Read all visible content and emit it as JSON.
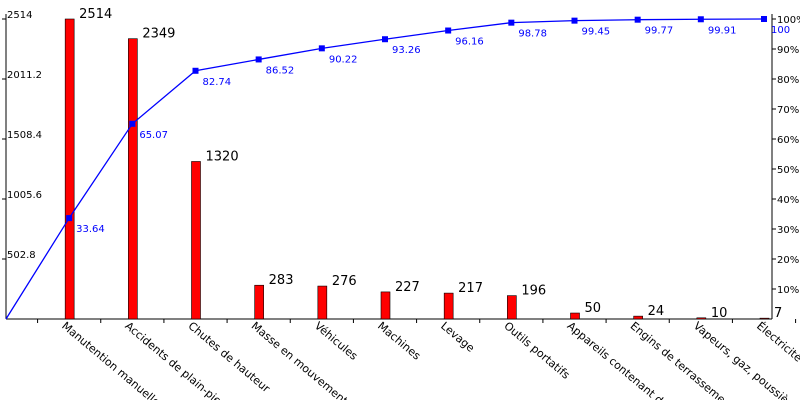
{
  "chart_data": {
    "type": "bar",
    "title": "",
    "categories": [
      "Manutention manuelle",
      "Accidents de plain-pied",
      "Chutes de hauteur",
      "Masse en mouvement",
      "Véhicules",
      "Machines",
      "Levage",
      "Outils portatifs",
      "Appareils contenant des",
      "Engins de terrassement",
      "Vapeurs, gaz, poussière",
      "Électricité"
    ],
    "series": [
      {
        "type": "bar",
        "values": [
          2514,
          2349,
          1320,
          283,
          276,
          227,
          217,
          196,
          50,
          24,
          10,
          7
        ],
        "labels": [
          "2514",
          "2349",
          "1320",
          "283",
          "276",
          "227",
          "217",
          "196",
          "50",
          "24",
          "10",
          "7"
        ],
        "color": "#ff0000"
      },
      {
        "type": "line",
        "axis": "right",
        "values": [
          33.64,
          65.07,
          82.74,
          86.52,
          90.22,
          93.26,
          96.16,
          98.78,
          99.45,
          99.77,
          99.91,
          100
        ],
        "labels": [
          "33.64",
          "65.07",
          "82.74",
          "86.52",
          "90.22",
          "93.26",
          "96.16",
          "98.78",
          "99.45",
          "99.77",
          "99.91",
          "100"
        ],
        "color": "#0000ff"
      }
    ],
    "y_left": {
      "ylim": [
        0,
        2514
      ],
      "ticks": [
        502.8,
        1005.6,
        1508.4,
        2011.2,
        2514
      ],
      "tick_labels": [
        "502.8",
        "1005.6",
        "1508.4",
        "2011.2",
        "2514"
      ]
    },
    "y_right": {
      "ylim": [
        0,
        100
      ],
      "ticks": [
        10,
        20,
        30,
        40,
        50,
        60,
        70,
        80,
        90,
        100
      ],
      "tick_labels": [
        "10%",
        "20%",
        "30%",
        "40%",
        "50%",
        "60%",
        "70%",
        "80%",
        "90%",
        "100%"
      ]
    },
    "grid": false,
    "legend": "none"
  }
}
